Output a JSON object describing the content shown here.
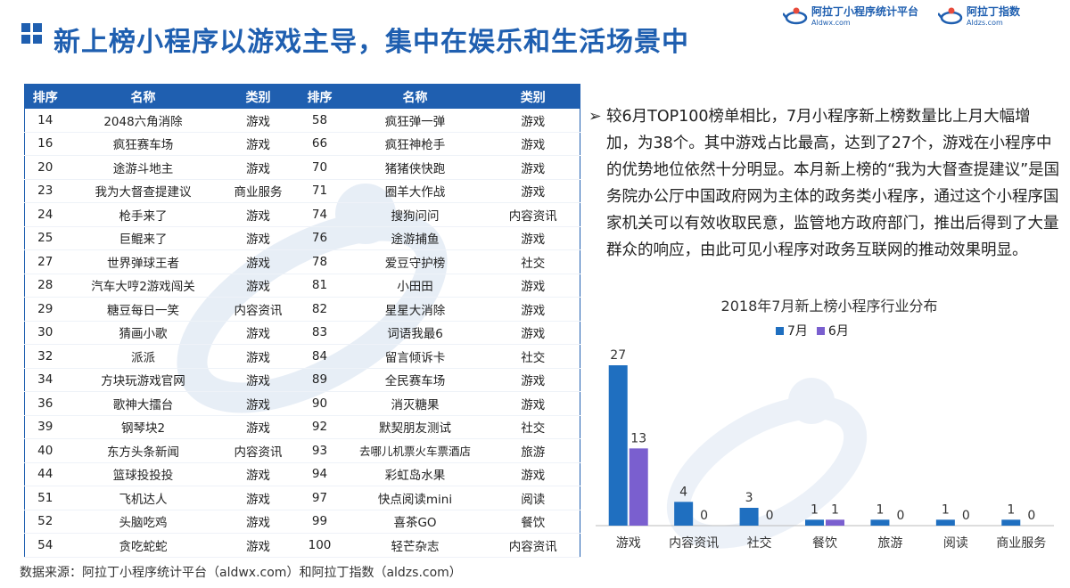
{
  "header": {
    "title": "新上榜小程序以游戏主导，集中在娱乐和生活场景中",
    "logos": [
      {
        "main": "阿拉丁小程序统计平台",
        "sub": "Aldwx.com"
      },
      {
        "main": "阿拉丁指数",
        "sub": "Aldzs.com"
      }
    ]
  },
  "table": {
    "headers": [
      "排序",
      "名称",
      "类别",
      "排序",
      "名称",
      "类别"
    ],
    "rows": [
      [
        "14",
        "2048六角消除",
        "游戏",
        "58",
        "疯狂弹一弹",
        "游戏"
      ],
      [
        "16",
        "疯狂赛车场",
        "游戏",
        "66",
        "疯狂神枪手",
        "游戏"
      ],
      [
        "20",
        "途游斗地主",
        "游戏",
        "70",
        "猪猪侠快跑",
        "游戏"
      ],
      [
        "23",
        "我为大督查提建议",
        "商业服务",
        "71",
        "圈羊大作战",
        "游戏"
      ],
      [
        "24",
        "枪手来了",
        "游戏",
        "74",
        "搜狗问问",
        "内容资讯"
      ],
      [
        "25",
        "巨鲲来了",
        "游戏",
        "76",
        "途游捕鱼",
        "游戏"
      ],
      [
        "27",
        "世界弹球王者",
        "游戏",
        "78",
        "爱豆守护榜",
        "社交"
      ],
      [
        "28",
        "汽车大哼2游戏闯关",
        "游戏",
        "81",
        "小田田",
        "游戏"
      ],
      [
        "29",
        "糖豆每日一笑",
        "内容资讯",
        "82",
        "星星大消除",
        "游戏"
      ],
      [
        "30",
        "猜画小歌",
        "游戏",
        "83",
        "词语我最6",
        "游戏"
      ],
      [
        "32",
        "派派",
        "游戏",
        "84",
        "留言倾诉卡",
        "社交"
      ],
      [
        "34",
        "方块玩游戏官网",
        "游戏",
        "89",
        "全民赛车场",
        "游戏"
      ],
      [
        "36",
        "歌神大擂台",
        "游戏",
        "90",
        "消灭糖果",
        "游戏"
      ],
      [
        "39",
        "钢琴块2",
        "游戏",
        "92",
        "默契朋友测试",
        "社交"
      ],
      [
        "40",
        "东方头条新闻",
        "内容资讯",
        "93",
        "去哪儿机票火车票酒店",
        "旅游"
      ],
      [
        "44",
        "篮球投投投",
        "游戏",
        "94",
        "彩虹岛水果",
        "游戏"
      ],
      [
        "51",
        "飞机达人",
        "游戏",
        "97",
        "快点阅读mini",
        "阅读"
      ],
      [
        "52",
        "头脑吃鸡",
        "游戏",
        "99",
        "喜茶GO",
        "餐饮"
      ],
      [
        "54",
        "贪吃蛇蛇",
        "游戏",
        "100",
        "轻芒杂志",
        "内容资讯"
      ]
    ]
  },
  "summary": {
    "arrow": "➢",
    "text": "较6月TOP100榜单相比，7月小程序新上榜数量比上月大幅增加，为38个。其中游戏占比最高，达到了27个，游戏在小程序中的优势地位依然十分明显。本月新上榜的“我为大督查提建议”是国务院办公厅中国政府网为主体的政务类小程序，通过这个小程序国家机关可以有效收取民意，监管地方政府部门，推出后得到了大量群众的响应，由此可见小程序对政务互联网的推动效果明显。"
  },
  "chart_data": {
    "type": "bar",
    "title": "2018年7月新上榜小程序行业分布",
    "categories": [
      "游戏",
      "内容资讯",
      "社交",
      "餐饮",
      "旅游",
      "阅读",
      "商业服务"
    ],
    "series": [
      {
        "name": "7月",
        "values": [
          27,
          4,
          3,
          1,
          1,
          1,
          1
        ],
        "color": "#1f6fc0"
      },
      {
        "name": "6月",
        "values": [
          13,
          0,
          0,
          1,
          0,
          0,
          0
        ],
        "color": "#7a5fcf"
      }
    ],
    "ylim": [
      0,
      27
    ],
    "legend": "top-center",
    "grid": false
  },
  "footer": {
    "source": "数据来源：阿拉丁小程序统计平台（aldwx.com）和阿拉丁指数（aldzs.com）"
  },
  "colors": {
    "primary": "#1f5fb0",
    "series_jul": "#1f6fc0",
    "series_jun": "#7a5fcf"
  }
}
